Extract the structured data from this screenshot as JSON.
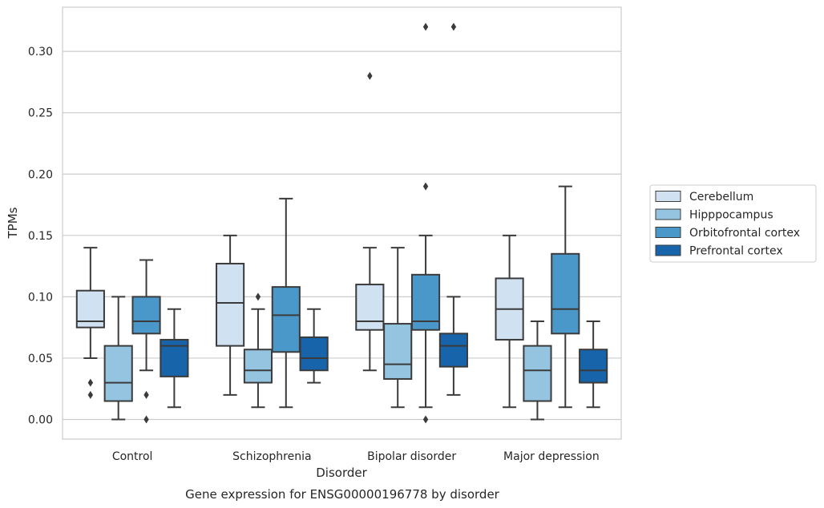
{
  "chart_data": {
    "type": "box",
    "caption": "Gene expression for ENSG00000196778 by disorder",
    "xlabel": "Disorder",
    "ylabel": "TPMs",
    "ylim": [
      -0.016,
      0.336
    ],
    "yticks": [
      0.0,
      0.05,
      0.1,
      0.15,
      0.2,
      0.25,
      0.3
    ],
    "ytick_labels": [
      "0.00",
      "0.05",
      "0.10",
      "0.15",
      "0.20",
      "0.25",
      "0.30"
    ],
    "grid": "horizontal",
    "legend_position": "right",
    "categories": [
      "Control",
      "Schizophrenia",
      "Bipolar disorder",
      "Major depression"
    ],
    "series": [
      {
        "name": "Cerebellum",
        "color": "#d0e1f2",
        "boxes": [
          {
            "whisker_low": 0.05,
            "q1": 0.075,
            "median": 0.08,
            "q3": 0.105,
            "whisker_high": 0.14,
            "outliers": [
              0.03,
              0.02
            ]
          },
          {
            "whisker_low": 0.02,
            "q1": 0.06,
            "median": 0.095,
            "q3": 0.127,
            "whisker_high": 0.15,
            "outliers": []
          },
          {
            "whisker_low": 0.04,
            "q1": 0.073,
            "median": 0.08,
            "q3": 0.11,
            "whisker_high": 0.14,
            "outliers": [
              0.28
            ]
          },
          {
            "whisker_low": 0.01,
            "q1": 0.065,
            "median": 0.09,
            "q3": 0.115,
            "whisker_high": 0.15,
            "outliers": []
          }
        ]
      },
      {
        "name": "Hipppocampus",
        "color": "#94c4df",
        "boxes": [
          {
            "whisker_low": 0.0,
            "q1": 0.015,
            "median": 0.03,
            "q3": 0.06,
            "whisker_high": 0.1,
            "outliers": []
          },
          {
            "whisker_low": 0.01,
            "q1": 0.03,
            "median": 0.04,
            "q3": 0.057,
            "whisker_high": 0.09,
            "outliers": [
              0.1
            ]
          },
          {
            "whisker_low": 0.01,
            "q1": 0.033,
            "median": 0.045,
            "q3": 0.078,
            "whisker_high": 0.14,
            "outliers": []
          },
          {
            "whisker_low": 0.0,
            "q1": 0.015,
            "median": 0.04,
            "q3": 0.06,
            "whisker_high": 0.08,
            "outliers": []
          }
        ]
      },
      {
        "name": "Orbitofrontal cortex",
        "color": "#4a98c9",
        "boxes": [
          {
            "whisker_low": 0.04,
            "q1": 0.07,
            "median": 0.08,
            "q3": 0.1,
            "whisker_high": 0.13,
            "outliers": [
              0.02,
              0.0
            ]
          },
          {
            "whisker_low": 0.01,
            "q1": 0.055,
            "median": 0.085,
            "q3": 0.108,
            "whisker_high": 0.18,
            "outliers": []
          },
          {
            "whisker_low": 0.01,
            "q1": 0.073,
            "median": 0.08,
            "q3": 0.118,
            "whisker_high": 0.15,
            "outliers": [
              0.19,
              0.32,
              0.0
            ]
          },
          {
            "whisker_low": 0.01,
            "q1": 0.07,
            "median": 0.09,
            "q3": 0.135,
            "whisker_high": 0.19,
            "outliers": []
          }
        ]
      },
      {
        "name": "Prefrontal cortex",
        "color": "#1764ab",
        "boxes": [
          {
            "whisker_low": 0.01,
            "q1": 0.035,
            "median": 0.06,
            "q3": 0.065,
            "whisker_high": 0.09,
            "outliers": []
          },
          {
            "whisker_low": 0.03,
            "q1": 0.04,
            "median": 0.05,
            "q3": 0.067,
            "whisker_high": 0.09,
            "outliers": []
          },
          {
            "whisker_low": 0.02,
            "q1": 0.043,
            "median": 0.06,
            "q3": 0.07,
            "whisker_high": 0.1,
            "outliers": [
              0.32
            ]
          },
          {
            "whisker_low": 0.01,
            "q1": 0.03,
            "median": 0.04,
            "q3": 0.057,
            "whisker_high": 0.08,
            "outliers": []
          }
        ]
      }
    ]
  }
}
